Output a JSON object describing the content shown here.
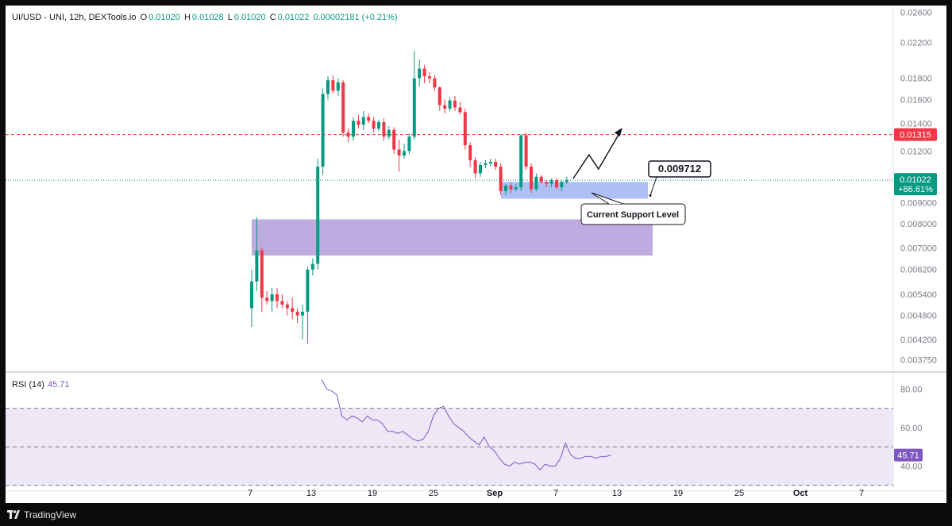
{
  "legend": {
    "symbol": "UI/USD - UNI, 12h, DEXTools.io",
    "o_label": "O",
    "o_value": "0.01020",
    "h_label": "H",
    "h_value": "0.01028",
    "l_label": "L",
    "l_value": "0.01020",
    "c_label": "C",
    "c_value": "0.01022",
    "change": "0.00002181 (+0.21%)"
  },
  "rsi_legend": {
    "label": "RSI (14)",
    "value": "45.71"
  },
  "footer": {
    "brand": "TradingView"
  },
  "colors": {
    "up": "#089981",
    "down": "#f23645",
    "resistance": "#f23645",
    "support_zone": "#9db5f5",
    "demand_zone": "#b39ddb",
    "rsi_line": "#7e57c2",
    "rsi_band": "#ede7f6"
  },
  "chart_data": [
    {
      "type": "candlestick",
      "title": "UI/USD - UNI, 12h, DEXTools.io",
      "x_tick_labels": [
        "7",
        "13",
        "19",
        "25",
        "Sep",
        "7",
        "13",
        "19",
        "25",
        "Oct",
        "7"
      ],
      "y_tick_labels": [
        "0.02600",
        "0.02200",
        "0.01800",
        "0.01600",
        "0.01400",
        "0.01200",
        "0.01000",
        "0.009000",
        "0.008000",
        "0.007000",
        "0.006200",
        "0.005400",
        "0.004800",
        "0.004200",
        "0.003750"
      ],
      "ylim": [
        0.0035,
        0.027
      ],
      "y_scale": "log",
      "last_price_label": "0.01022",
      "last_change_label": "+86.61%",
      "resistance_label": "0.01315",
      "resistance_level": 0.01315,
      "candles": [
        {
          "o": 0.005,
          "h": 0.0062,
          "l": 0.0045,
          "c": 0.0058
        },
        {
          "o": 0.0058,
          "h": 0.0083,
          "l": 0.0055,
          "c": 0.0069
        },
        {
          "o": 0.0069,
          "h": 0.007,
          "l": 0.0049,
          "c": 0.0053
        },
        {
          "o": 0.0053,
          "h": 0.0055,
          "l": 0.0051,
          "c": 0.0052
        },
        {
          "o": 0.0052,
          "h": 0.0056,
          "l": 0.0049,
          "c": 0.0054
        },
        {
          "o": 0.0054,
          "h": 0.0056,
          "l": 0.005,
          "c": 0.0052
        },
        {
          "o": 0.0052,
          "h": 0.0054,
          "l": 0.005,
          "c": 0.0051
        },
        {
          "o": 0.0051,
          "h": 0.0052,
          "l": 0.0048,
          "c": 0.005
        },
        {
          "o": 0.005,
          "h": 0.0053,
          "l": 0.0047,
          "c": 0.0049
        },
        {
          "o": 0.0049,
          "h": 0.005,
          "l": 0.0046,
          "c": 0.0048
        },
        {
          "o": 0.0048,
          "h": 0.0051,
          "l": 0.0042,
          "c": 0.0049
        },
        {
          "o": 0.0049,
          "h": 0.0063,
          "l": 0.0041,
          "c": 0.0062
        },
        {
          "o": 0.0062,
          "h": 0.0066,
          "l": 0.006,
          "c": 0.0064
        },
        {
          "o": 0.0064,
          "h": 0.0115,
          "l": 0.0062,
          "c": 0.011
        },
        {
          "o": 0.011,
          "h": 0.017,
          "l": 0.0105,
          "c": 0.0165
        },
        {
          "o": 0.0165,
          "h": 0.0182,
          "l": 0.016,
          "c": 0.0178
        },
        {
          "o": 0.0178,
          "h": 0.0183,
          "l": 0.0165,
          "c": 0.0168
        },
        {
          "o": 0.0168,
          "h": 0.018,
          "l": 0.0163,
          "c": 0.0176
        },
        {
          "o": 0.0176,
          "h": 0.0178,
          "l": 0.013,
          "c": 0.0133
        },
        {
          "o": 0.0133,
          "h": 0.0136,
          "l": 0.0126,
          "c": 0.013
        },
        {
          "o": 0.013,
          "h": 0.0145,
          "l": 0.0127,
          "c": 0.0142
        },
        {
          "o": 0.0142,
          "h": 0.0147,
          "l": 0.0136,
          "c": 0.0139
        },
        {
          "o": 0.0139,
          "h": 0.015,
          "l": 0.0135,
          "c": 0.0145
        },
        {
          "o": 0.0145,
          "h": 0.0148,
          "l": 0.014,
          "c": 0.0142
        },
        {
          "o": 0.0142,
          "h": 0.0145,
          "l": 0.0133,
          "c": 0.0136
        },
        {
          "o": 0.0136,
          "h": 0.0143,
          "l": 0.0134,
          "c": 0.0141
        },
        {
          "o": 0.0141,
          "h": 0.0144,
          "l": 0.0127,
          "c": 0.013
        },
        {
          "o": 0.013,
          "h": 0.0138,
          "l": 0.0128,
          "c": 0.0135
        },
        {
          "o": 0.0135,
          "h": 0.0137,
          "l": 0.0118,
          "c": 0.0121
        },
        {
          "o": 0.0121,
          "h": 0.0128,
          "l": 0.0107,
          "c": 0.0117
        },
        {
          "o": 0.0117,
          "h": 0.0125,
          "l": 0.0115,
          "c": 0.012
        },
        {
          "o": 0.012,
          "h": 0.0132,
          "l": 0.0118,
          "c": 0.013
        },
        {
          "o": 0.013,
          "h": 0.021,
          "l": 0.0128,
          "c": 0.018
        },
        {
          "o": 0.018,
          "h": 0.02,
          "l": 0.0172,
          "c": 0.019
        },
        {
          "o": 0.019,
          "h": 0.0194,
          "l": 0.0175,
          "c": 0.0182
        },
        {
          "o": 0.0182,
          "h": 0.0186,
          "l": 0.0175,
          "c": 0.018
        },
        {
          "o": 0.018,
          "h": 0.0183,
          "l": 0.0168,
          "c": 0.0171
        },
        {
          "o": 0.0171,
          "h": 0.0172,
          "l": 0.015,
          "c": 0.0155
        },
        {
          "o": 0.0155,
          "h": 0.016,
          "l": 0.0148,
          "c": 0.0152
        },
        {
          "o": 0.0152,
          "h": 0.0162,
          "l": 0.015,
          "c": 0.0159
        },
        {
          "o": 0.0159,
          "h": 0.0163,
          "l": 0.015,
          "c": 0.0153
        },
        {
          "o": 0.0153,
          "h": 0.0158,
          "l": 0.0147,
          "c": 0.0149
        },
        {
          "o": 0.0149,
          "h": 0.0152,
          "l": 0.0121,
          "c": 0.0124
        },
        {
          "o": 0.0124,
          "h": 0.0126,
          "l": 0.011,
          "c": 0.0114
        },
        {
          "o": 0.0114,
          "h": 0.0116,
          "l": 0.0103,
          "c": 0.0106
        },
        {
          "o": 0.0106,
          "h": 0.0113,
          "l": 0.0104,
          "c": 0.0111
        },
        {
          "o": 0.0111,
          "h": 0.0114,
          "l": 0.0109,
          "c": 0.0112
        },
        {
          "o": 0.0112,
          "h": 0.0115,
          "l": 0.011,
          "c": 0.0113
        },
        {
          "o": 0.0113,
          "h": 0.0115,
          "l": 0.0108,
          "c": 0.011
        },
        {
          "o": 0.011,
          "h": 0.0112,
          "l": 0.0094,
          "c": 0.0096
        },
        {
          "o": 0.0096,
          "h": 0.01,
          "l": 0.0094,
          "c": 0.0099
        },
        {
          "o": 0.0099,
          "h": 0.0101,
          "l": 0.0095,
          "c": 0.0097
        },
        {
          "o": 0.0097,
          "h": 0.01,
          "l": 0.0096,
          "c": 0.0098
        },
        {
          "o": 0.0098,
          "h": 0.0132,
          "l": 0.0096,
          "c": 0.0131
        },
        {
          "o": 0.0131,
          "h": 0.0133,
          "l": 0.0108,
          "c": 0.011
        },
        {
          "o": 0.011,
          "h": 0.0112,
          "l": 0.0095,
          "c": 0.0097
        },
        {
          "o": 0.0097,
          "h": 0.0106,
          "l": 0.0096,
          "c": 0.0104
        },
        {
          "o": 0.0104,
          "h": 0.0105,
          "l": 0.01,
          "c": 0.0101
        },
        {
          "o": 0.0101,
          "h": 0.0102,
          "l": 0.0098,
          "c": 0.01
        },
        {
          "o": 0.01,
          "h": 0.0103,
          "l": 0.0098,
          "c": 0.0102
        },
        {
          "o": 0.0102,
          "h": 0.0103,
          "l": 0.0097,
          "c": 0.0098
        },
        {
          "o": 0.0098,
          "h": 0.0102,
          "l": 0.0096,
          "c": 0.0101
        },
        {
          "o": 0.0101,
          "h": 0.0104,
          "l": 0.01,
          "c": 0.0102
        }
      ],
      "support_zone": {
        "y_low": 0.0092,
        "y_high": 0.0101,
        "label": "Current Support Level",
        "price_label": "0.009712"
      },
      "demand_zone": {
        "y_low": 0.0067,
        "y_high": 0.0082
      }
    },
    {
      "type": "line",
      "title": "RSI (14)",
      "y_tick_labels": [
        "80.00",
        "60.00",
        "40.00"
      ],
      "ylim": [
        27,
        88
      ],
      "bands": [
        30,
        50,
        70
      ],
      "last_value_label": "45.71",
      "series": [
        {
          "name": "RSI (14)",
          "values": [
            85,
            80,
            79,
            77,
            66,
            64,
            66,
            65,
            63,
            66,
            64,
            64,
            62,
            58,
            58,
            57,
            58,
            56,
            54,
            53,
            54,
            58,
            66,
            70,
            71,
            66,
            62,
            60,
            58,
            55,
            53,
            51,
            55,
            50,
            48,
            44,
            41,
            40,
            42,
            41,
            42,
            42,
            41,
            38,
            41,
            40,
            40,
            44,
            52,
            46,
            44,
            44,
            45,
            45,
            44,
            45,
            45,
            45.71
          ]
        }
      ]
    }
  ]
}
